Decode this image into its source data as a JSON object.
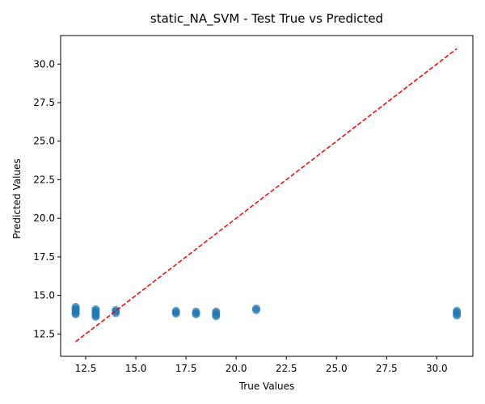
{
  "chart_data": {
    "type": "scatter",
    "title": "static_NA_SVM - Test True vs Predicted",
    "xlabel": "True Values",
    "ylabel": "Predicted Values",
    "xlim": [
      11.25,
      31.8
    ],
    "ylim": [
      11.05,
      31.85
    ],
    "xticks": [
      12.5,
      15.0,
      17.5,
      20.0,
      22.5,
      25.0,
      27.5,
      30.0
    ],
    "yticks": [
      12.5,
      15.0,
      17.5,
      20.0,
      22.5,
      25.0,
      27.5,
      30.0
    ],
    "grid": false,
    "series": [
      {
        "marker": "circle",
        "color": "#1f77b4",
        "points": [
          [
            12,
            14.25
          ],
          [
            12,
            14.15
          ],
          [
            12,
            14.05
          ],
          [
            12,
            13.95
          ],
          [
            12,
            13.85
          ],
          [
            12,
            13.78
          ],
          [
            13,
            14.1
          ],
          [
            13,
            14.0
          ],
          [
            13,
            13.9
          ],
          [
            13,
            13.8
          ],
          [
            13,
            13.7
          ],
          [
            13,
            13.62
          ],
          [
            14,
            14.05
          ],
          [
            14,
            13.95
          ],
          [
            14,
            13.85
          ],
          [
            17,
            14.0
          ],
          [
            17,
            13.9
          ],
          [
            17,
            13.82
          ],
          [
            18,
            13.95
          ],
          [
            18,
            13.85
          ],
          [
            18,
            13.78
          ],
          [
            19,
            13.95
          ],
          [
            19,
            13.85
          ],
          [
            19,
            13.75
          ],
          [
            19,
            13.65
          ],
          [
            21,
            14.15
          ],
          [
            21,
            14.05
          ],
          [
            31,
            14.0
          ],
          [
            31,
            13.9
          ],
          [
            31,
            13.8
          ],
          [
            31,
            13.7
          ]
        ]
      }
    ],
    "reference_line": {
      "style": "dashed",
      "color": "#ff0000",
      "from": [
        12,
        12
      ],
      "to": [
        31,
        31
      ]
    }
  }
}
